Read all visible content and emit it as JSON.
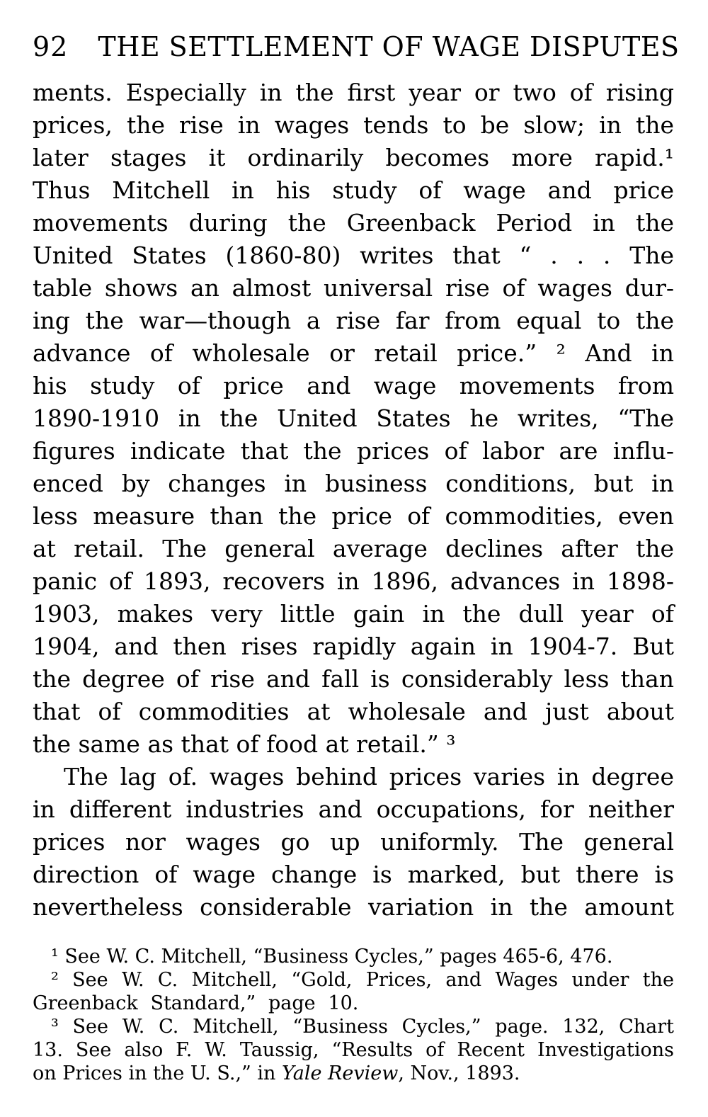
{
  "header": {
    "page_number": "92",
    "title": "THE SETTLEMENT OF WAGE DISPUTES"
  },
  "colors": {
    "ink": "#000000",
    "paper": "#ffffff"
  },
  "body": {
    "lines": [
      "ments. Especially in the first year or two of rising",
      "prices, the rise in wages tends to be slow; in the",
      "later stages it ordinarily becomes more rapid.¹",
      "Thus Mitchell in his study of wage and price",
      "movements during the Greenback Period in the",
      "United States (1860-80) writes that “ . . . The",
      "table shows an almost universal rise of wages dur-",
      "ing the war—though a rise far from equal to the",
      "advance of wholesale or retail price.” ² And in",
      "his study of price and wage movements from",
      "1890-1910 in the United States he writes, “The",
      "figures indicate that the prices of labor are influ-",
      "enced by changes in business conditions, but in",
      "less measure than the price of commodities, even",
      "at retail. The general average declines after the",
      "panic of 1893, recovers in 1896, advances in 1898-",
      "1903, makes very little gain in the dull year of",
      "1904, and then rises rapidly again in 1904-7. But",
      "the degree of rise and fall is considerably less than",
      "that of commodities at wholesale and just about",
      "the same as that of food at retail.” ³",
      "The lag of. wages behind prices varies in degree",
      "in different industries and occupations, for neither",
      "prices nor wages go up uniformly. The general",
      "direction of wage change is marked, but there is",
      "nevertheless considerable variation in the amount"
    ]
  },
  "footnotes": {
    "lines": [
      "¹ See W. C. Mitchell, “Business Cycles,” pages 465-6, 476.",
      "² See W. C. Mitchell, “Gold, Prices, and Wages under the",
      "Greenback Standard,” page 10.",
      "³ See W. C. Mitchell, “Business Cycles,” page. 132, Chart",
      "13. See also F. W. Taussig, “Results of Recent Investigations"
    ],
    "fn3_last": {
      "pre": "on Prices in the U. S.,” in ",
      "italic": "Yale Review",
      "post": ", Nov., 1893."
    }
  }
}
